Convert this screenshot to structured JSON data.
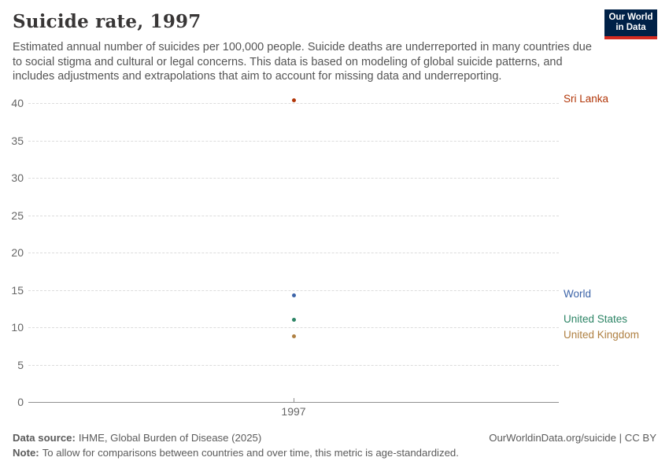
{
  "header": {
    "title": "Suicide rate, 1997",
    "subtitle": "Estimated annual number of suicides per 100,000 people. Suicide deaths are underreported in many countries due to social stigma and cultural or legal concerns. This data is based on modeling of global suicide patterns, and includes adjustments and extrapolations that aim to account for missing data and underreporting.",
    "logo": {
      "line1": "Our World",
      "line2": "in Data",
      "bg_color": "#002147",
      "bar_color": "#D42B21"
    }
  },
  "chart_data": {
    "type": "scatter",
    "title": "Suicide rate, 1997",
    "xlabel": "",
    "ylabel": "",
    "x": [
      "1997"
    ],
    "ylim": [
      0,
      40
    ],
    "yticks": [
      0,
      5,
      10,
      15,
      20,
      25,
      30,
      35,
      40
    ],
    "grid": "horizontal-dashed",
    "legend_position": "right-inline-labels",
    "series": [
      {
        "name": "Sri Lanka",
        "x": "1997",
        "value": 40.4,
        "color": "#B13507"
      },
      {
        "name": "World",
        "x": "1997",
        "value": 14.3,
        "color": "#3D64A8"
      },
      {
        "name": "United States",
        "x": "1997",
        "value": 11.0,
        "color": "#2C8465"
      },
      {
        "name": "United Kingdom",
        "x": "1997",
        "value": 8.8,
        "color": "#AF8042"
      }
    ]
  },
  "footer": {
    "source_label": "Data source:",
    "source_text": "IHME, Global Burden of Disease (2025)",
    "link": "OurWorldinData.org/suicide | CC BY",
    "note_label": "Note:",
    "note_text": "To allow for comparisons between countries and over time, this metric is age-standardized."
  }
}
